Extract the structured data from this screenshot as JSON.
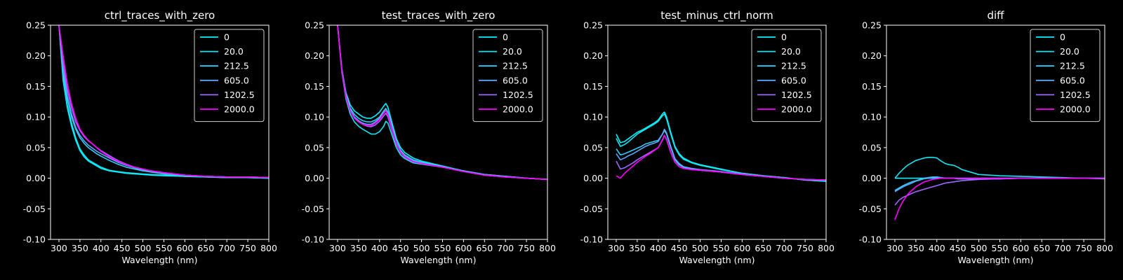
{
  "colors": {
    "background": "#000000",
    "foreground": "#ffffff",
    "series": [
      "#00f3ff",
      "#12e5f5",
      "#33ccff",
      "#5aa8ff",
      "#a066ff",
      "#ff00ff"
    ]
  },
  "chart_data": [
    {
      "type": "line",
      "title": "ctrl_traces_with_zero",
      "xlabel": "Wavelength (nm)",
      "ylabel": "",
      "xlim": [
        280,
        800
      ],
      "ylim": [
        -0.1,
        0.25
      ],
      "x_ticks": [
        300,
        350,
        400,
        450,
        500,
        550,
        600,
        650,
        700,
        750,
        800
      ],
      "y_ticks": [
        "0.25",
        "0.20",
        "0.15",
        "0.10",
        "0.05",
        "0.00",
        "-0.05",
        "-0.10"
      ],
      "legend_position": "top-right",
      "x": [
        300,
        310,
        320,
        330,
        340,
        350,
        360,
        370,
        380,
        390,
        400,
        420,
        440,
        460,
        480,
        500,
        520,
        550,
        600,
        650,
        700,
        750,
        800
      ],
      "series": [
        {
          "name": "0",
          "values": [
            0.25,
            0.16,
            0.115,
            0.085,
            0.062,
            0.045,
            0.035,
            0.028,
            0.024,
            0.02,
            0.016,
            0.012,
            0.01,
            0.008,
            0.007,
            0.006,
            0.005,
            0.004,
            0.003,
            0.002,
            0.001,
            0.001,
            0.0
          ]
        },
        {
          "name": "20.0",
          "values": [
            0.25,
            0.165,
            0.12,
            0.09,
            0.066,
            0.048,
            0.038,
            0.03,
            0.026,
            0.022,
            0.018,
            0.013,
            0.011,
            0.009,
            0.008,
            0.007,
            0.006,
            0.005,
            0.003,
            0.002,
            0.001,
            0.001,
            0.0
          ]
        },
        {
          "name": "212.5",
          "values": [
            0.25,
            0.175,
            0.13,
            0.1,
            0.08,
            0.066,
            0.057,
            0.05,
            0.045,
            0.04,
            0.036,
            0.029,
            0.023,
            0.018,
            0.015,
            0.012,
            0.01,
            0.007,
            0.004,
            0.003,
            0.002,
            0.002,
            0.001
          ]
        },
        {
          "name": "605.0",
          "values": [
            0.25,
            0.18,
            0.135,
            0.105,
            0.083,
            0.07,
            0.061,
            0.054,
            0.049,
            0.044,
            0.04,
            0.033,
            0.026,
            0.021,
            0.017,
            0.013,
            0.011,
            0.008,
            0.005,
            0.003,
            0.002,
            0.002,
            0.001
          ]
        },
        {
          "name": "1202.5",
          "values": [
            0.25,
            0.19,
            0.145,
            0.115,
            0.092,
            0.078,
            0.068,
            0.061,
            0.056,
            0.05,
            0.045,
            0.037,
            0.029,
            0.023,
            0.018,
            0.015,
            0.012,
            0.009,
            0.005,
            0.003,
            0.002,
            0.002,
            0.001
          ]
        },
        {
          "name": "2000.0",
          "values": [
            0.25,
            0.2,
            0.155,
            0.122,
            0.098,
            0.08,
            0.07,
            0.062,
            0.056,
            0.05,
            0.044,
            0.035,
            0.028,
            0.022,
            0.018,
            0.015,
            0.012,
            0.009,
            0.005,
            0.003,
            0.002,
            0.002,
            0.001
          ]
        }
      ]
    },
    {
      "type": "line",
      "title": "test_traces_with_zero",
      "xlabel": "Wavelength (nm)",
      "ylabel": "",
      "xlim": [
        280,
        800
      ],
      "ylim": [
        -0.1,
        0.25
      ],
      "x_ticks": [
        300,
        350,
        400,
        450,
        500,
        550,
        600,
        650,
        700,
        750,
        800
      ],
      "y_ticks": [
        "0.25",
        "0.20",
        "0.15",
        "0.10",
        "0.05",
        "0.00",
        "-0.05",
        "-0.10"
      ],
      "legend_position": "top-right",
      "x": [
        300,
        310,
        320,
        330,
        340,
        350,
        360,
        370,
        380,
        390,
        400,
        410,
        415,
        420,
        430,
        440,
        450,
        460,
        480,
        500,
        550,
        600,
        650,
        700,
        750,
        800
      ],
      "series": [
        {
          "name": "0",
          "values": [
            0.25,
            0.18,
            0.14,
            0.12,
            0.11,
            0.105,
            0.1,
            0.098,
            0.098,
            0.102,
            0.108,
            0.118,
            0.122,
            0.116,
            0.09,
            0.065,
            0.05,
            0.042,
            0.033,
            0.028,
            0.02,
            0.012,
            0.006,
            0.003,
            0.0,
            -0.002
          ]
        },
        {
          "name": "20.0",
          "values": [
            0.25,
            0.175,
            0.13,
            0.105,
            0.092,
            0.085,
            0.08,
            0.076,
            0.072,
            0.072,
            0.076,
            0.085,
            0.093,
            0.09,
            0.07,
            0.05,
            0.038,
            0.032,
            0.025,
            0.023,
            0.018,
            0.012,
            0.006,
            0.003,
            0.0,
            -0.002
          ]
        },
        {
          "name": "212.5",
          "values": [
            0.25,
            0.18,
            0.138,
            0.115,
            0.104,
            0.098,
            0.094,
            0.092,
            0.092,
            0.095,
            0.1,
            0.11,
            0.114,
            0.108,
            0.084,
            0.06,
            0.046,
            0.038,
            0.03,
            0.026,
            0.019,
            0.012,
            0.006,
            0.003,
            0.0,
            -0.002
          ]
        },
        {
          "name": "605.0",
          "values": [
            0.25,
            0.178,
            0.135,
            0.112,
            0.1,
            0.094,
            0.09,
            0.088,
            0.088,
            0.092,
            0.098,
            0.107,
            0.111,
            0.105,
            0.081,
            0.058,
            0.044,
            0.036,
            0.028,
            0.025,
            0.018,
            0.011,
            0.005,
            0.002,
            0.0,
            -0.002
          ]
        },
        {
          "name": "1202.5",
          "values": [
            0.25,
            0.178,
            0.134,
            0.11,
            0.098,
            0.092,
            0.088,
            0.085,
            0.084,
            0.087,
            0.093,
            0.102,
            0.106,
            0.1,
            0.077,
            0.055,
            0.042,
            0.034,
            0.027,
            0.024,
            0.018,
            0.011,
            0.005,
            0.002,
            0.0,
            -0.002
          ]
        },
        {
          "name": "2000.0",
          "values": [
            0.25,
            0.178,
            0.134,
            0.11,
            0.098,
            0.092,
            0.088,
            0.086,
            0.086,
            0.09,
            0.096,
            0.106,
            0.11,
            0.104,
            0.08,
            0.057,
            0.043,
            0.035,
            0.027,
            0.024,
            0.018,
            0.011,
            0.005,
            0.002,
            0.0,
            -0.002
          ]
        }
      ]
    },
    {
      "type": "line",
      "title": "test_minus_ctrl_norm",
      "xlabel": "Wavelength (nm)",
      "ylabel": "",
      "xlim": [
        280,
        800
      ],
      "ylim": [
        -0.1,
        0.25
      ],
      "x_ticks": [
        300,
        350,
        400,
        450,
        500,
        550,
        600,
        650,
        700,
        750,
        800
      ],
      "y_ticks": [
        "0.25",
        "0.20",
        "0.15",
        "0.10",
        "0.05",
        "0.00",
        "-0.05",
        "-0.10"
      ],
      "legend_position": "top-right",
      "x": [
        300,
        310,
        320,
        330,
        340,
        350,
        360,
        370,
        380,
        390,
        400,
        410,
        415,
        420,
        430,
        440,
        450,
        460,
        480,
        500,
        550,
        600,
        650,
        700,
        750,
        800
      ],
      "series": [
        {
          "name": "0",
          "values": [
            0.072,
            0.058,
            0.06,
            0.065,
            0.07,
            0.075,
            0.078,
            0.082,
            0.086,
            0.09,
            0.095,
            0.105,
            0.108,
            0.1,
            0.075,
            0.052,
            0.04,
            0.033,
            0.026,
            0.022,
            0.015,
            0.008,
            0.004,
            0.001,
            -0.003,
            -0.005
          ]
        },
        {
          "name": "20.0",
          "values": [
            0.065,
            0.052,
            0.055,
            0.06,
            0.066,
            0.072,
            0.076,
            0.08,
            0.084,
            0.088,
            0.093,
            0.102,
            0.105,
            0.097,
            0.072,
            0.05,
            0.038,
            0.031,
            0.025,
            0.021,
            0.014,
            0.008,
            0.004,
            0.001,
            -0.003,
            -0.005
          ]
        },
        {
          "name": "212.5",
          "values": [
            0.048,
            0.038,
            0.04,
            0.043,
            0.046,
            0.049,
            0.052,
            0.056,
            0.058,
            0.06,
            0.062,
            0.072,
            0.078,
            0.072,
            0.05,
            0.03,
            0.022,
            0.018,
            0.015,
            0.013,
            0.01,
            0.006,
            0.003,
            0.0,
            -0.002,
            -0.003
          ]
        },
        {
          "name": "605.0",
          "values": [
            0.04,
            0.03,
            0.033,
            0.037,
            0.04,
            0.044,
            0.048,
            0.052,
            0.055,
            0.057,
            0.06,
            0.072,
            0.08,
            0.074,
            0.052,
            0.032,
            0.024,
            0.019,
            0.016,
            0.014,
            0.011,
            0.007,
            0.003,
            0.0,
            -0.002,
            -0.003
          ]
        },
        {
          "name": "1202.5",
          "values": [
            0.028,
            0.015,
            0.017,
            0.021,
            0.025,
            0.03,
            0.034,
            0.038,
            0.042,
            0.046,
            0.05,
            0.062,
            0.07,
            0.064,
            0.042,
            0.026,
            0.019,
            0.016,
            0.014,
            0.013,
            0.01,
            0.006,
            0.003,
            0.0,
            -0.002,
            -0.003
          ]
        },
        {
          "name": "2000.0",
          "values": [
            0.004,
            0.0,
            0.008,
            0.014,
            0.02,
            0.026,
            0.031,
            0.036,
            0.04,
            0.045,
            0.05,
            0.063,
            0.07,
            0.063,
            0.042,
            0.026,
            0.019,
            0.016,
            0.014,
            0.013,
            0.01,
            0.006,
            0.003,
            0.0,
            -0.002,
            -0.003
          ]
        }
      ]
    },
    {
      "type": "line",
      "title": "diff",
      "xlabel": "Wavelength (nm)",
      "ylabel": "",
      "xlim": [
        280,
        800
      ],
      "ylim": [
        -0.1,
        0.25
      ],
      "x_ticks": [
        300,
        350,
        400,
        450,
        500,
        550,
        600,
        650,
        700,
        750,
        800
      ],
      "y_ticks": [
        "0.25",
        "0.20",
        "0.15",
        "0.10",
        "0.05",
        "0.00",
        "-0.05",
        "-0.10"
      ],
      "legend_position": "top-right",
      "x": [
        300,
        310,
        320,
        330,
        340,
        350,
        360,
        370,
        380,
        390,
        400,
        410,
        420,
        430,
        440,
        450,
        460,
        480,
        500,
        550,
        600,
        650,
        700,
        750,
        800
      ],
      "series": [
        {
          "name": "0",
          "values": [
            0.0,
            0.0,
            0.0,
            0.0,
            0.0,
            0.0,
            0.0,
            0.0,
            0.0,
            0.0,
            0.0,
            0.0,
            0.0,
            0.0,
            0.0,
            0.0,
            0.0,
            0.0,
            0.0,
            0.0,
            0.0,
            0.0,
            0.0,
            0.0,
            0.0
          ]
        },
        {
          "name": "20.0",
          "values": [
            0.0,
            0.008,
            0.015,
            0.021,
            0.025,
            0.029,
            0.031,
            0.033,
            0.034,
            0.034,
            0.033,
            0.028,
            0.024,
            0.022,
            0.021,
            0.018,
            0.014,
            0.01,
            0.006,
            0.004,
            0.003,
            0.002,
            0.001,
            0.0,
            -0.001
          ]
        },
        {
          "name": "212.5",
          "values": [
            -0.02,
            -0.016,
            -0.012,
            -0.009,
            -0.006,
            -0.004,
            -0.002,
            0.0,
            0.001,
            0.002,
            0.002,
            0.001,
            0.0,
            0.0,
            0.0,
            -0.001,
            -0.001,
            -0.001,
            -0.001,
            -0.001,
            0.0,
            0.0,
            0.0,
            0.0,
            0.0
          ]
        },
        {
          "name": "605.0",
          "values": [
            -0.022,
            -0.018,
            -0.014,
            -0.011,
            -0.008,
            -0.005,
            -0.003,
            -0.001,
            0.0,
            0.001,
            0.001,
            0.001,
            0.0,
            0.0,
            0.0,
            -0.001,
            -0.001,
            -0.001,
            -0.001,
            -0.001,
            0.0,
            0.0,
            0.0,
            0.0,
            0.0
          ]
        },
        {
          "name": "1202.5",
          "values": [
            -0.044,
            -0.036,
            -0.031,
            -0.028,
            -0.025,
            -0.022,
            -0.02,
            -0.018,
            -0.016,
            -0.014,
            -0.012,
            -0.01,
            -0.008,
            -0.007,
            -0.006,
            -0.005,
            -0.004,
            -0.003,
            -0.002,
            -0.001,
            0.0,
            0.0,
            0.0,
            0.0,
            0.0
          ]
        },
        {
          "name": "2000.0",
          "values": [
            -0.068,
            -0.05,
            -0.037,
            -0.027,
            -0.02,
            -0.014,
            -0.01,
            -0.006,
            -0.004,
            -0.002,
            -0.001,
            0.0,
            0.0,
            0.0,
            0.0,
            0.0,
            0.0,
            0.0,
            0.0,
            0.0,
            0.0,
            0.0,
            0.0,
            0.0,
            0.0
          ]
        }
      ]
    }
  ]
}
